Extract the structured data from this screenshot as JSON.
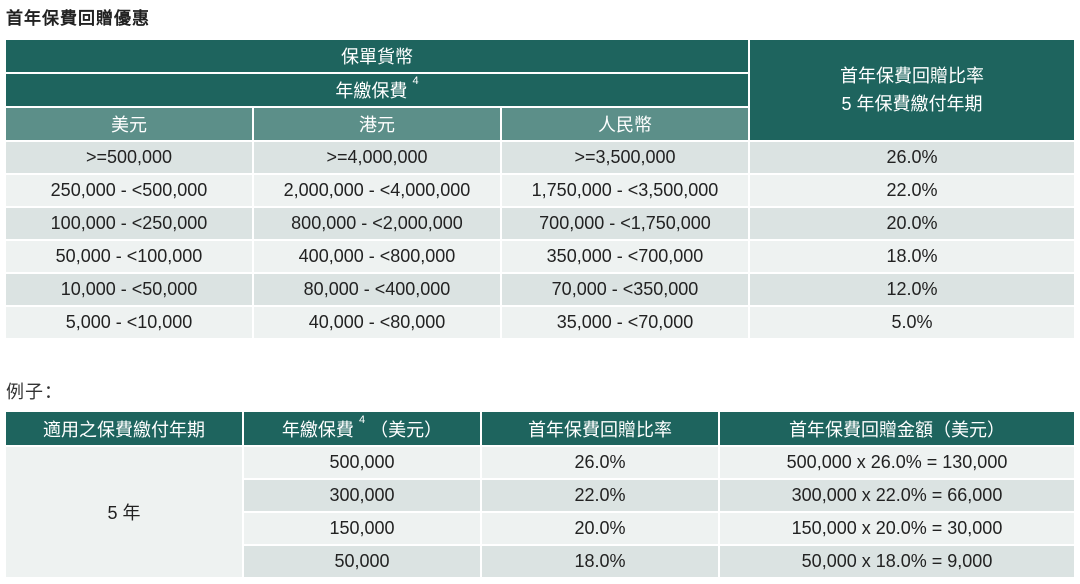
{
  "title": "首年保費回贈優惠",
  "table1": {
    "currency_header": "保單貨幣",
    "premium_header": "年繳保費",
    "premium_footnote": "4",
    "rate_header_line1": "首年保費回贈比率",
    "rate_header_line2": "5 年保費繳付年期",
    "currencies": [
      "美元",
      "港元",
      "人民幣"
    ],
    "rows": [
      [
        ">=500,000",
        ">=4,000,000",
        ">=3,500,000",
        "26.0%"
      ],
      [
        "250,000 - <500,000",
        "2,000,000 - <4,000,000",
        "1,750,000 - <3,500,000",
        "22.0%"
      ],
      [
        "100,000 - <250,000",
        "800,000 - <2,000,000",
        "700,000 - <1,750,000",
        "20.0%"
      ],
      [
        "50,000 - <100,000",
        "400,000 - <800,000",
        "350,000 - <700,000",
        "18.0%"
      ],
      [
        "10,000 - <50,000",
        "80,000 - <400,000",
        "70,000 - <350,000",
        "12.0%"
      ],
      [
        "5,000 - <10,000",
        "40,000 - <80,000",
        "35,000 - <70,000",
        "5.0%"
      ]
    ]
  },
  "example": {
    "label": "例子：",
    "headers": {
      "period": "適用之保費繳付年期",
      "premium_prefix": "年繳保費",
      "premium_footnote": "4",
      "premium_suffix": "（美元）",
      "rate": "首年保費回贈比率",
      "amount": "首年保費回贈金額（美元）"
    },
    "period_value": "5 年",
    "rows": [
      [
        "500,000",
        "26.0%",
        "500,000 x 26.0% = 130,000"
      ],
      [
        "300,000",
        "22.0%",
        "300,000 x 22.0% = 66,000"
      ],
      [
        "150,000",
        "20.0%",
        "150,000 x 20.0% = 30,000"
      ],
      [
        "50,000",
        "18.0%",
        "50,000 x 18.0% = 9,000"
      ]
    ]
  }
}
